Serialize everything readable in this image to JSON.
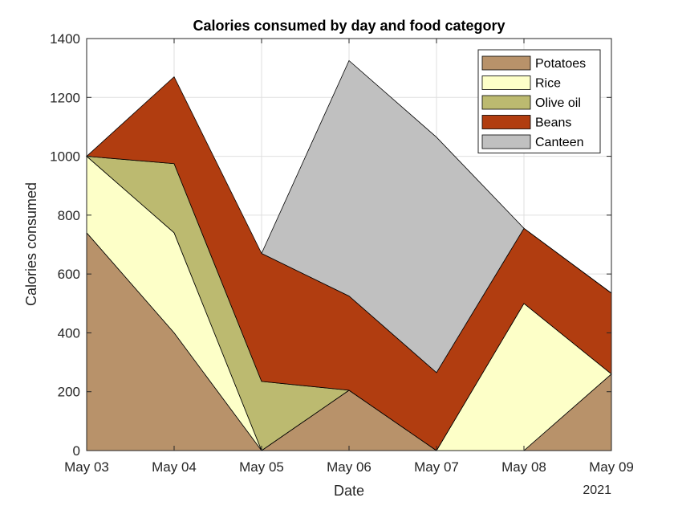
{
  "chart_data": {
    "type": "area",
    "stacked": true,
    "title": "Calories consumed by day and food category",
    "xlabel": "Date",
    "ylabel": "Calories consumed",
    "year_label": "2021",
    "categories": [
      "May 03",
      "May 04",
      "May 05",
      "May 06",
      "May 07",
      "May 08",
      "May 09"
    ],
    "ylim": [
      0,
      1400
    ],
    "yticks": [
      0,
      200,
      400,
      600,
      800,
      1000,
      1200,
      1400
    ],
    "grid": true,
    "legend_position": "top-right",
    "series": [
      {
        "name": "Potatoes",
        "color": "#B8926A",
        "values": [
          740,
          400,
          0,
          205,
          0,
          0,
          260
        ]
      },
      {
        "name": "Rice",
        "color": "#FDFFC8",
        "values": [
          260,
          340,
          0,
          0,
          0,
          500,
          0
        ]
      },
      {
        "name": "Olive oil",
        "color": "#BCBA70",
        "values": [
          0,
          235,
          235,
          0,
          0,
          0,
          0
        ]
      },
      {
        "name": "Beans",
        "color": "#B13D10",
        "values": [
          0,
          295,
          435,
          320,
          265,
          255,
          275
        ]
      },
      {
        "name": "Canteen",
        "color": "#C0C0C0",
        "values": [
          0,
          0,
          0,
          800,
          800,
          0,
          0
        ]
      }
    ],
    "series_start_index": [
      0,
      0,
      0,
      0,
      2
    ]
  }
}
